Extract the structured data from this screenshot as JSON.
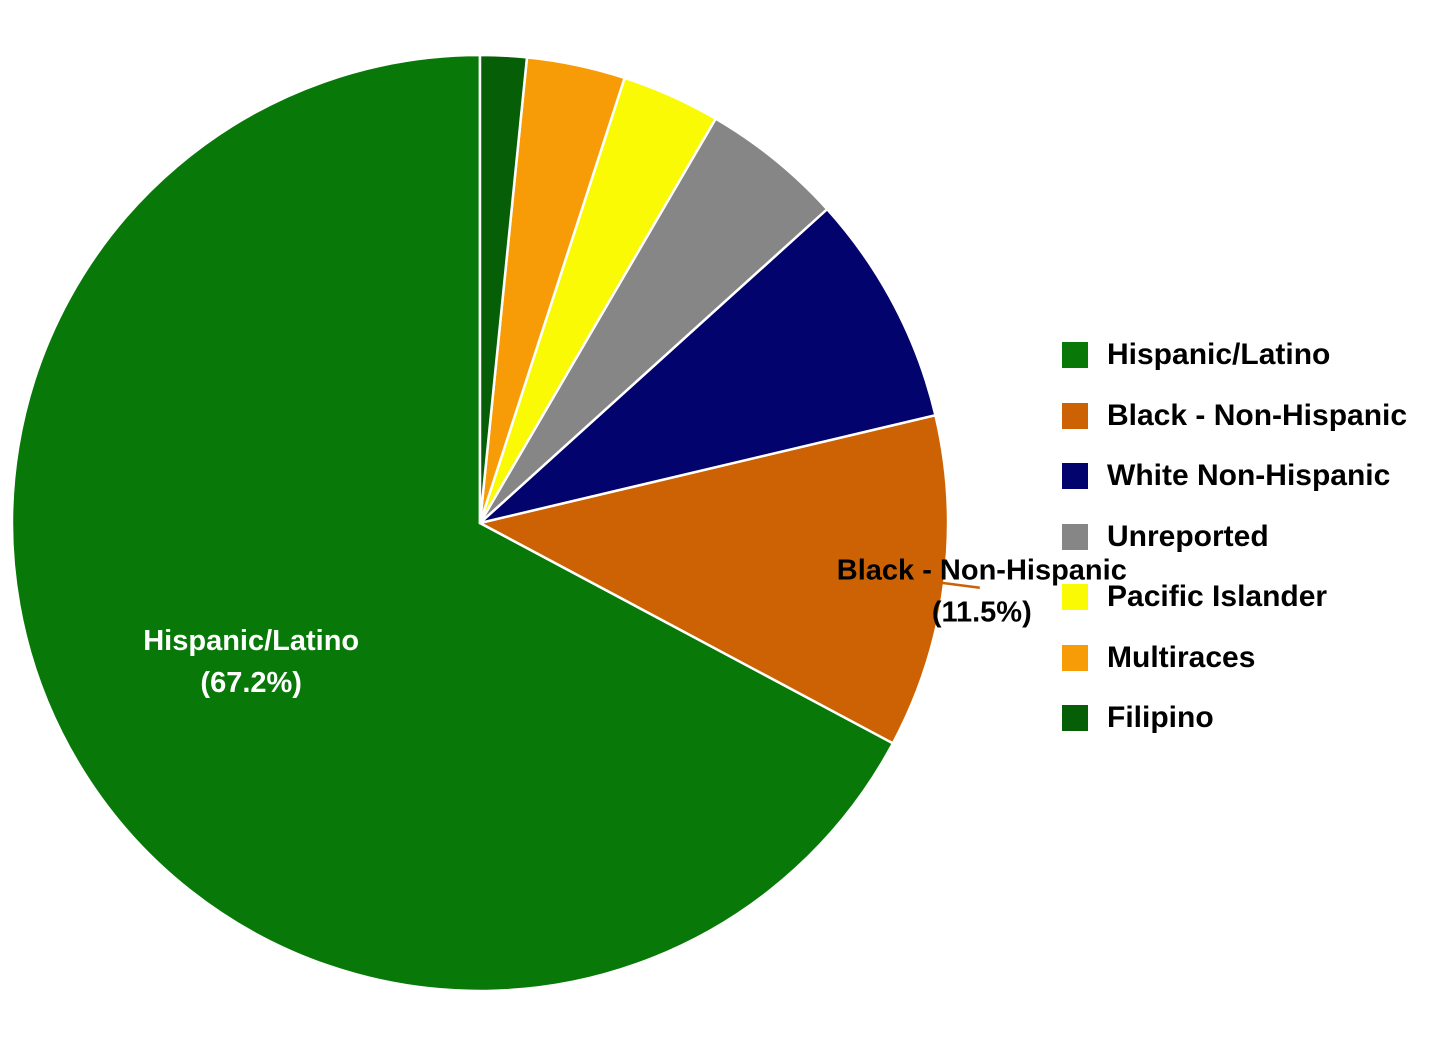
{
  "chart_data": {
    "type": "pie",
    "slices": [
      {
        "label": "Hispanic/Latino",
        "value": 67.2,
        "color": "#087908"
      },
      {
        "label": "Black - Non-Hispanic",
        "value": 11.5,
        "color": "#cc6204"
      },
      {
        "label": "White Non-Hispanic",
        "value": 8.0,
        "color": "#03036e"
      },
      {
        "label": "Unreported",
        "value": 4.9,
        "color": "#868686"
      },
      {
        "label": "Pacific Islander",
        "value": 3.4,
        "color": "#fafa04"
      },
      {
        "label": "Multiraces",
        "value": 3.4,
        "color": "#f79c07"
      },
      {
        "label": "Filipino",
        "value": 1.6,
        "color": "#065e06"
      }
    ],
    "data_labels": [
      {
        "slice": "Hispanic/Latino",
        "name": "Hispanic/Latino",
        "percent": "(67.2%)",
        "color": "#ffffff"
      },
      {
        "slice": "Black - Non-Hispanic",
        "name": "Black - Non-Hispanic",
        "percent": "(11.5%)",
        "color": "#000000"
      }
    ],
    "legend": {
      "position": "right",
      "entries": [
        "Hispanic/Latino",
        "Black - Non-Hispanic",
        "White Non-Hispanic",
        "Unreported",
        "Pacific Islander",
        "Multiraces",
        "Filipino"
      ]
    },
    "start_angle": "12 o'clock",
    "direction": "counterclockwise"
  }
}
